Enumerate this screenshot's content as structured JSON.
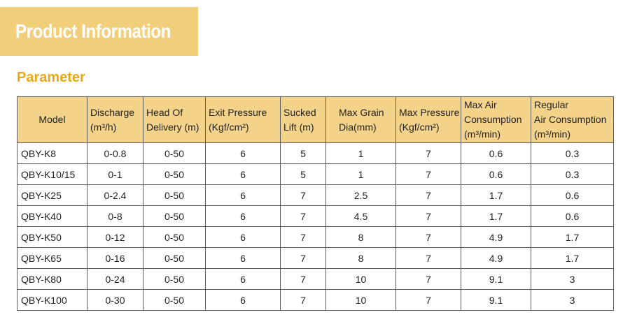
{
  "banner": {
    "title": "Product Information"
  },
  "section": {
    "title": "Parameter"
  },
  "table": {
    "headers": [
      [
        "Model"
      ],
      [
        "Discharge",
        "(m³/h)"
      ],
      [
        "Head Of",
        "Delivery (m)"
      ],
      [
        "Exit Pressure",
        "(Kgf/cm²)"
      ],
      [
        "Sucked",
        "Lift (m)"
      ],
      [
        "Max Grain",
        "Dia(mm)"
      ],
      [
        "Max Pressure",
        "(Kgf/cm²)"
      ],
      [
        "Max Air",
        "Consumption",
        "(m³/min)"
      ],
      [
        "Regular",
        "Air Consumption",
        "(m³/min)"
      ]
    ],
    "rows": [
      [
        "QBY-K8",
        "0-0.8",
        "0-50",
        "6",
        "5",
        "1",
        "7",
        "0.6",
        "0.3"
      ],
      [
        "QBY-K10/15",
        "0-1",
        "0-50",
        "6",
        "5",
        "1",
        "7",
        "0.6",
        "0.3"
      ],
      [
        "QBY-K25",
        "0-2.4",
        "0-50",
        "6",
        "7",
        "2.5",
        "7",
        "1.7",
        "0.6"
      ],
      [
        "QBY-K40",
        "0-8",
        "0-50",
        "6",
        "7",
        "4.5",
        "7",
        "1.7",
        "0.6"
      ],
      [
        "QBY-K50",
        "0-12",
        "0-50",
        "6",
        "7",
        "8",
        "7",
        "4.9",
        "1.7"
      ],
      [
        "QBY-K65",
        "0-16",
        "0-50",
        "6",
        "7",
        "8",
        "7",
        "4.9",
        "1.7"
      ],
      [
        "QBY-K80",
        "0-24",
        "0-50",
        "6",
        "7",
        "10",
        "7",
        "9.1",
        "3"
      ],
      [
        "QBY-K100",
        "0-30",
        "0-50",
        "6",
        "7",
        "10",
        "7",
        "9.1",
        "3"
      ]
    ]
  }
}
